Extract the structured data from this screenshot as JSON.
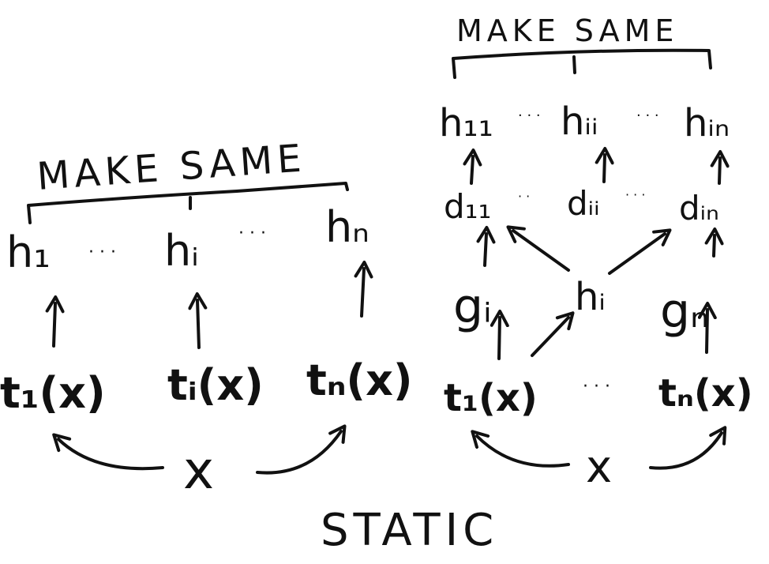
{
  "colors": {
    "ink": "#111111",
    "background": "#ffffff"
  },
  "left_diagram": {
    "make_same": "MAKE SAME",
    "h_nodes": [
      "h₁",
      "hᵢ",
      "hₙ"
    ],
    "h_ellipses": [
      "· · ·",
      "· · ·"
    ],
    "t_nodes": [
      "t₁(x)",
      "tᵢ(x)",
      "tₙ(x)"
    ],
    "input": "x"
  },
  "right_diagram": {
    "make_same": "MAKE SAME",
    "h_nodes": [
      "h₁₁",
      "hᵢᵢ",
      "hᵢₙ"
    ],
    "h_ellipses": [
      "· · ·",
      "· · ·"
    ],
    "d_nodes": [
      "d₁₁",
      "dᵢᵢ",
      "dᵢₙ"
    ],
    "d_ellipses": [
      "· ·",
      "· · ·"
    ],
    "g_nodes": [
      "gᵢ",
      "gₙ"
    ],
    "shared_h": "hᵢ",
    "t_nodes": [
      "t₁(x)",
      "tₙ(x)"
    ],
    "t_ellipsis": "· · ·",
    "input": "x"
  },
  "caption": "STATIC"
}
